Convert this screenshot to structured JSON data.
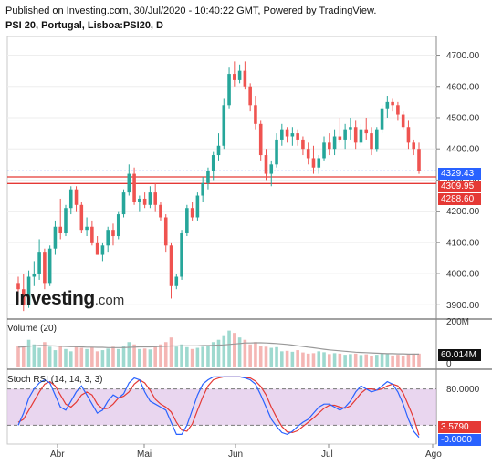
{
  "header": {
    "published": "Published on Investing.com, 30/Jul/2020 - 10:40:22 GMT, Powered by TradingView.",
    "symbol": "PSI 20, Portugal, Lisboa:PSI20, D"
  },
  "logo": {
    "brand": "Investing",
    "tld": ".com"
  },
  "colors": {
    "up": "#26a69a",
    "down": "#ef5350",
    "support": "#e53935",
    "last_price": "#2962ff",
    "stoch_k": "#2962ff",
    "stoch_d": "#e53935",
    "stoch_band": "#e1c8ea",
    "volume_ma": "#999999",
    "volume_down": "#f4b6b4",
    "volume_up": "#9ed9cf"
  },
  "price_tags": [
    {
      "text": "4329.43",
      "color": "#2962ff"
    },
    {
      "text": "4309.95",
      "color": "#e53935"
    },
    {
      "text": "4288.60",
      "color": "#e53935"
    }
  ],
  "volume_panel": {
    "label": "Volume (20)",
    "axis_label": "200M",
    "value_tag": "60.014M"
  },
  "stoch_panel": {
    "label": "Stoch RSI (14, 14, 3, 3)",
    "axis_labels": [
      "80.0000",
      "20.0000"
    ],
    "k_tag": "-0.0000",
    "d_tag": "3.5790"
  },
  "chart_data": {
    "type": "candlestick",
    "title": "PSI 20, Portugal, Lisboa:PSI20, D",
    "y_ticks": [
      "4700.00",
      "4600.00",
      "4500.00",
      "4400.00",
      "4300.00",
      "4200.00",
      "4100.00",
      "4000.00",
      "3900.00"
    ],
    "ylim": [
      3860,
      4760
    ],
    "x_ticks": [
      "Abr",
      "Mai",
      "Jun",
      "Jul",
      "Ago"
    ],
    "horizontal_lines": [
      4329.43,
      4309.95,
      4288.6
    ],
    "ohlc": [
      [
        3970,
        3990,
        3910,
        3950
      ],
      [
        3950,
        4000,
        3880,
        3900
      ],
      [
        3900,
        4010,
        3890,
        3990
      ],
      [
        3990,
        4040,
        3960,
        4000
      ],
      [
        4000,
        4110,
        3980,
        4070
      ],
      [
        4070,
        4080,
        3950,
        3970
      ],
      [
        3970,
        4090,
        3960,
        4080
      ],
      [
        4080,
        4170,
        4060,
        4150
      ],
      [
        4150,
        4240,
        4110,
        4130
      ],
      [
        4130,
        4220,
        4120,
        4210
      ],
      [
        4210,
        4280,
        4190,
        4270
      ],
      [
        4270,
        4280,
        4200,
        4220
      ],
      [
        4220,
        4230,
        4130,
        4140
      ],
      [
        4140,
        4180,
        4120,
        4150
      ],
      [
        4150,
        4170,
        4090,
        4100
      ],
      [
        4100,
        4120,
        4060,
        4060
      ],
      [
        4060,
        4100,
        4040,
        4090
      ],
      [
        4090,
        4150,
        4070,
        4140
      ],
      [
        4140,
        4160,
        4090,
        4120
      ],
      [
        4120,
        4200,
        4110,
        4190
      ],
      [
        4190,
        4270,
        4180,
        4260
      ],
      [
        4260,
        4350,
        4250,
        4320
      ],
      [
        4320,
        4340,
        4220,
        4230
      ],
      [
        4230,
        4250,
        4200,
        4240
      ],
      [
        4240,
        4260,
        4210,
        4220
      ],
      [
        4220,
        4280,
        4210,
        4260
      ],
      [
        4260,
        4290,
        4200,
        4220
      ],
      [
        4220,
        4230,
        4170,
        4180
      ],
      [
        4180,
        4190,
        4070,
        4090
      ],
      [
        4090,
        4100,
        3920,
        3960
      ],
      [
        3960,
        4000,
        3950,
        3990
      ],
      [
        3990,
        4140,
        3980,
        4130
      ],
      [
        4130,
        4220,
        4120,
        4210
      ],
      [
        4210,
        4230,
        4170,
        4180
      ],
      [
        4180,
        4260,
        4170,
        4250
      ],
      [
        4250,
        4310,
        4230,
        4290
      ],
      [
        4290,
        4340,
        4270,
        4330
      ],
      [
        4330,
        4390,
        4300,
        4380
      ],
      [
        4380,
        4450,
        4360,
        4410
      ],
      [
        4410,
        4560,
        4400,
        4540
      ],
      [
        4540,
        4660,
        4530,
        4640
      ],
      [
        4640,
        4680,
        4600,
        4620
      ],
      [
        4620,
        4670,
        4610,
        4650
      ],
      [
        4650,
        4680,
        4590,
        4600
      ],
      [
        4600,
        4610,
        4520,
        4540
      ],
      [
        4540,
        4570,
        4460,
        4480
      ],
      [
        4480,
        4490,
        4360,
        4380
      ],
      [
        4380,
        4400,
        4300,
        4320
      ],
      [
        4320,
        4360,
        4280,
        4350
      ],
      [
        4350,
        4450,
        4340,
        4430
      ],
      [
        4430,
        4480,
        4410,
        4460
      ],
      [
        4460,
        4470,
        4420,
        4440
      ],
      [
        4440,
        4470,
        4410,
        4450
      ],
      [
        4450,
        4460,
        4410,
        4430
      ],
      [
        4430,
        4440,
        4380,
        4400
      ],
      [
        4400,
        4420,
        4350,
        4370
      ],
      [
        4370,
        4410,
        4320,
        4340
      ],
      [
        4340,
        4380,
        4320,
        4370
      ],
      [
        4370,
        4440,
        4360,
        4420
      ],
      [
        4420,
        4450,
        4380,
        4400
      ],
      [
        4400,
        4460,
        4380,
        4440
      ],
      [
        4440,
        4500,
        4420,
        4430
      ],
      [
        4430,
        4480,
        4400,
        4460
      ],
      [
        4460,
        4500,
        4430,
        4470
      ],
      [
        4470,
        4490,
        4400,
        4420
      ],
      [
        4420,
        4480,
        4410,
        4460
      ],
      [
        4460,
        4500,
        4430,
        4450
      ],
      [
        4450,
        4470,
        4380,
        4400
      ],
      [
        4400,
        4470,
        4390,
        4460
      ],
      [
        4460,
        4540,
        4450,
        4530
      ],
      [
        4530,
        4570,
        4500,
        4550
      ],
      [
        4550,
        4560,
        4520,
        4540
      ],
      [
        4540,
        4550,
        4490,
        4510
      ],
      [
        4510,
        4520,
        4460,
        4470
      ],
      [
        4470,
        4490,
        4400,
        4420
      ],
      [
        4420,
        4430,
        4380,
        4400
      ],
      [
        4400,
        4420,
        4320,
        4329.43
      ]
    ],
    "volume": [
      95,
      88,
      120,
      100,
      85,
      110,
      90,
      75,
      95,
      80,
      70,
      92,
      85,
      80,
      88,
      70,
      75,
      82,
      90,
      80,
      95,
      110,
      100,
      80,
      82,
      78,
      95,
      100,
      110,
      130,
      90,
      100,
      88,
      80,
      85,
      90,
      95,
      110,
      120,
      140,
      160,
      150,
      130,
      120,
      100,
      110,
      95,
      90,
      85,
      88,
      70,
      72,
      68,
      75,
      65,
      60,
      62,
      70,
      66,
      58,
      62,
      60,
      55,
      58,
      60,
      54,
      57,
      50,
      55,
      60,
      58,
      52,
      55,
      50,
      57,
      60,
      60.014
    ],
    "volume_axis_max": 200,
    "volume_ma": [
      88,
      89,
      92,
      94,
      95,
      95,
      94,
      93,
      92,
      91,
      90,
      90,
      89,
      88,
      88,
      87,
      87,
      86,
      86,
      86,
      86,
      87,
      88,
      89,
      89,
      89,
      90,
      91,
      92,
      93,
      93,
      94,
      94,
      94,
      94,
      95,
      95,
      96,
      97,
      98,
      100,
      102,
      104,
      106,
      106,
      107,
      107,
      106,
      105,
      104,
      102,
      100,
      97,
      94,
      91,
      88,
      85,
      82,
      79,
      76,
      74,
      72,
      70,
      68,
      66,
      65,
      64,
      63,
      62,
      61,
      60,
      60,
      59,
      59,
      58,
      58,
      58
    ],
    "stoch_k": [
      20,
      40,
      65,
      80,
      90,
      95,
      90,
      70,
      50,
      45,
      60,
      75,
      85,
      70,
      55,
      40,
      45,
      60,
      70,
      65,
      72,
      90,
      98,
      95,
      75,
      60,
      55,
      50,
      45,
      25,
      5,
      5,
      20,
      45,
      70,
      88,
      95,
      100,
      100,
      100,
      100,
      100,
      100,
      98,
      95,
      88,
      70,
      50,
      30,
      18,
      8,
      5,
      10,
      18,
      25,
      30,
      40,
      50,
      55,
      55,
      50,
      45,
      50,
      60,
      75,
      85,
      80,
      75,
      78,
      85,
      92,
      88,
      75,
      55,
      30,
      10,
      -0.0
    ],
    "stoch_d": [
      25,
      30,
      45,
      60,
      75,
      88,
      92,
      85,
      70,
      55,
      50,
      58,
      70,
      75,
      70,
      55,
      47,
      48,
      55,
      65,
      68,
      75,
      88,
      95,
      90,
      78,
      63,
      55,
      50,
      42,
      25,
      12,
      10,
      22,
      45,
      67,
      85,
      95,
      98,
      100,
      100,
      100,
      100,
      99,
      98,
      93,
      84,
      70,
      50,
      33,
      18,
      9,
      8,
      11,
      18,
      25,
      32,
      40,
      48,
      53,
      53,
      50,
      48,
      52,
      62,
      73,
      80,
      80,
      78,
      80,
      85,
      88,
      85,
      73,
      53,
      32,
      3.579
    ],
    "stoch_levels": [
      80,
      20
    ]
  }
}
